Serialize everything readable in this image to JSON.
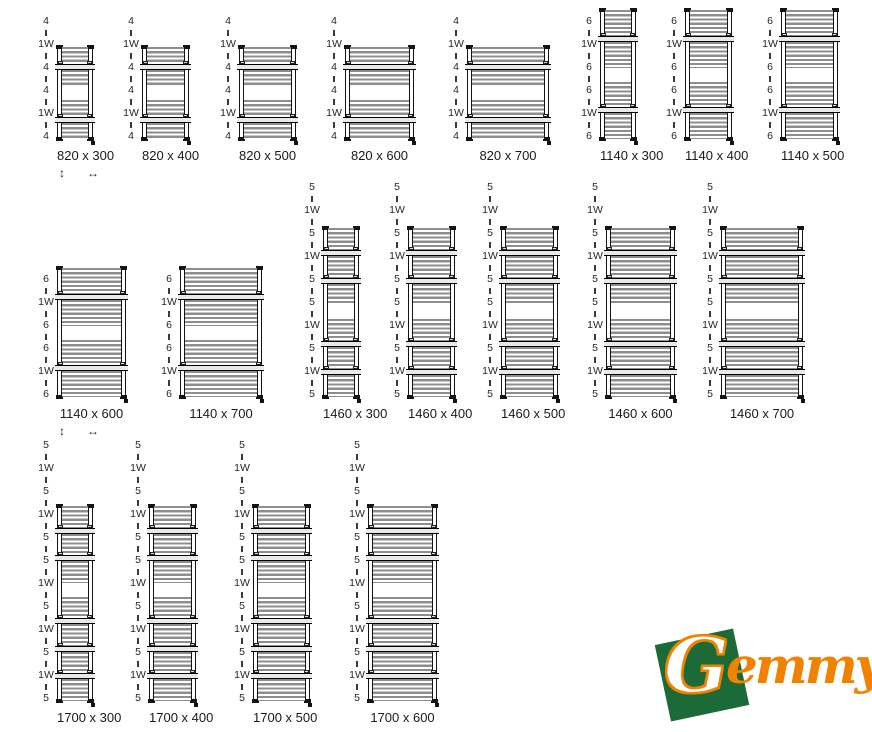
{
  "arrows": {
    "vertical": "↕",
    "horizontal": "↔"
  },
  "rows": [
    {
      "units": [
        {
          "name": "820 x 300",
          "pattern": [
            "4",
            "1W",
            "4",
            "4",
            "1W",
            "4"
          ],
          "arrows": true
        },
        {
          "name": "820 x 400",
          "pattern": [
            "4",
            "1W",
            "4",
            "4",
            "1W",
            "4"
          ],
          "arrows": false
        },
        {
          "name": "820 x 500",
          "pattern": [
            "4",
            "1W",
            "4",
            "4",
            "1W",
            "4"
          ],
          "arrows": false
        },
        {
          "name": "820 x 600",
          "pattern": [
            "4",
            "1W",
            "4",
            "4",
            "1W",
            "4"
          ],
          "arrows": false
        },
        {
          "name": "820 x 700",
          "pattern": [
            "4",
            "1W",
            "4",
            "4",
            "1W",
            "4"
          ],
          "arrows": false
        },
        {
          "name": "1140 x 300",
          "pattern": [
            "6",
            "1W",
            "6",
            "6",
            "1W",
            "6"
          ],
          "arrows": false
        },
        {
          "name": "1140 x 400",
          "pattern": [
            "6",
            "1W",
            "6",
            "6",
            "1W",
            "6"
          ],
          "arrows": false
        },
        {
          "name": "1140 x 500",
          "pattern": [
            "6",
            "1W",
            "6",
            "6",
            "1W",
            "6"
          ],
          "arrows": false
        }
      ]
    },
    {
      "units": [
        {
          "name": "1140 x 600",
          "pattern": [
            "6",
            "1W",
            "6",
            "6",
            "1W",
            "6"
          ],
          "arrows": true
        },
        {
          "name": "1140 x 700",
          "pattern": [
            "6",
            "1W",
            "6",
            "6",
            "1W",
            "6"
          ],
          "arrows": false
        },
        {
          "name": "1460 x 300",
          "pattern": [
            "5",
            "1W",
            "5",
            "1W",
            "5",
            "5",
            "1W",
            "5",
            "1W",
            "5"
          ],
          "arrows": false
        },
        {
          "name": "1460 x 400",
          "pattern": [
            "5",
            "1W",
            "5",
            "1W",
            "5",
            "5",
            "1W",
            "5",
            "1W",
            "5"
          ],
          "arrows": false
        },
        {
          "name": "1460 x 500",
          "pattern": [
            "5",
            "1W",
            "5",
            "1W",
            "5",
            "5",
            "1W",
            "5",
            "1W",
            "5"
          ],
          "arrows": false
        },
        {
          "name": "1460 x 600",
          "pattern": [
            "5",
            "1W",
            "5",
            "1W",
            "5",
            "5",
            "1W",
            "5",
            "1W",
            "5"
          ],
          "arrows": false
        },
        {
          "name": "1460 x 700",
          "pattern": [
            "5",
            "1W",
            "5",
            "1W",
            "5",
            "5",
            "1W",
            "5",
            "1W",
            "5"
          ],
          "arrows": false
        }
      ]
    },
    {
      "units": [
        {
          "name": "1700 x 300",
          "pattern": [
            "5",
            "1W",
            "5",
            "1W",
            "5",
            "5",
            "1W",
            "5",
            "1W",
            "5",
            "1W",
            "5"
          ],
          "arrows": true
        },
        {
          "name": "1700 x 400",
          "pattern": [
            "5",
            "1W",
            "5",
            "1W",
            "5",
            "5",
            "1W",
            "5",
            "1W",
            "5",
            "1W",
            "5"
          ],
          "arrows": false
        },
        {
          "name": "1700 x 500",
          "pattern": [
            "5",
            "1W",
            "5",
            "1W",
            "5",
            "5",
            "1W",
            "5",
            "1W",
            "5",
            "1W",
            "5"
          ],
          "arrows": false
        },
        {
          "name": "1700 x 600",
          "pattern": [
            "5",
            "1W",
            "5",
            "1W",
            "5",
            "5",
            "1W",
            "5",
            "1W",
            "5",
            "1W",
            "5"
          ],
          "arrows": false
        }
      ]
    }
  ],
  "logo": {
    "g": "G",
    "rest": "emmy",
    "green": "#1b6a38",
    "orange": "#f08200"
  }
}
